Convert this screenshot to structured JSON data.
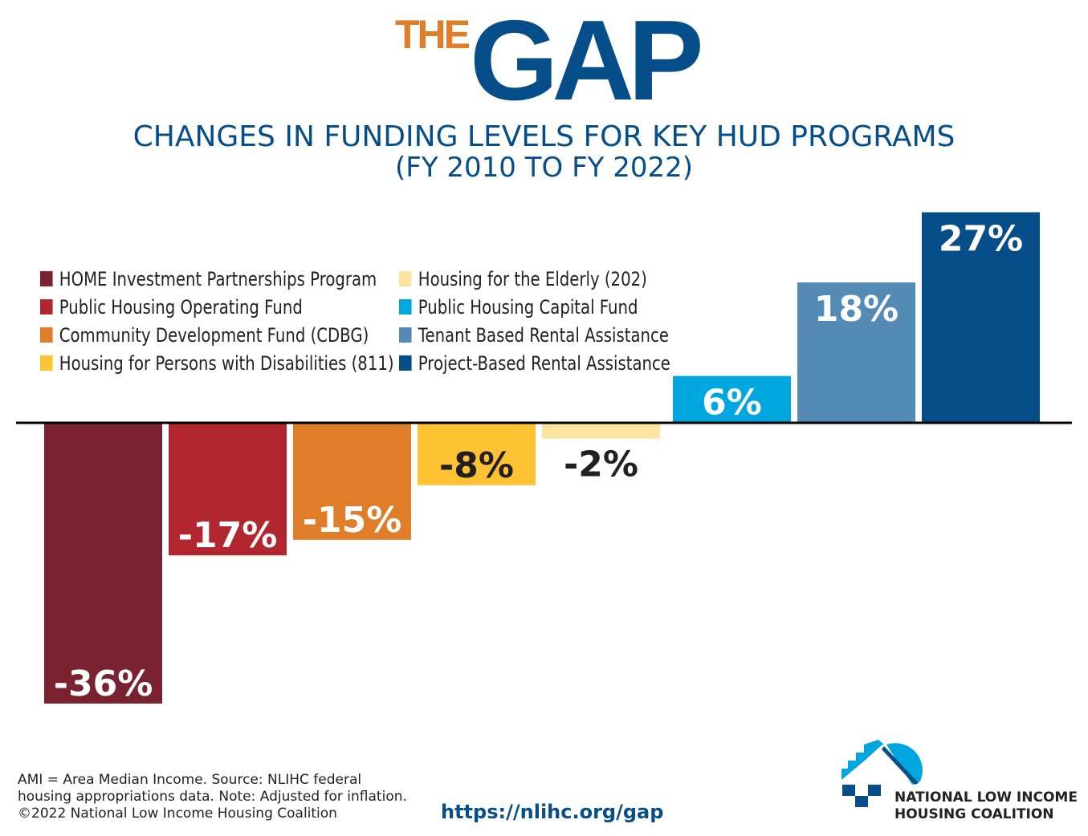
{
  "logo": {
    "the": "THE",
    "gap": "GAP"
  },
  "chart_data": {
    "type": "bar",
    "title": "CHANGES IN FUNDING LEVELS FOR KEY HUD PROGRAMS",
    "subtitle": "(FY 2010 TO FY 2022)",
    "categories": [
      "HOME Investment Partnerships Program",
      "Public Housing Operating Fund",
      "Community Development Fund (CDBG)",
      "Housing for Persons with Disabilities (811)",
      "Housing for the Elderly (202)",
      "Public Housing Capital Fund",
      "Tenant Based Rental Assistance",
      "Project-Based Rental Assistance"
    ],
    "values": [
      -36,
      -17,
      -15,
      -8,
      -2,
      6,
      18,
      27
    ],
    "labels": [
      "-36%",
      "-17%",
      "-15%",
      "-8%",
      "-2%",
      "6%",
      "18%",
      "27%"
    ],
    "colors": [
      "#7a222f",
      "#b1262f",
      "#e07d28",
      "#fec232",
      "#fde49d",
      "#00a6e0",
      "#538bb4",
      "#064e8a"
    ],
    "label_colors": [
      "#ffffff",
      "#ffffff",
      "#ffffff",
      "#231f20",
      "#231f20",
      "#ffffff",
      "#ffffff",
      "#ffffff"
    ],
    "unit": "%",
    "grid": false,
    "legend_placement": "top-left"
  },
  "footer": {
    "lines": [
      "AMI = Area Median Income. Source: NLIHC federal",
      "housing appropriations data. Note: Adjusted for inflation.",
      "©2022 National Low Income Housing Coalition"
    ],
    "url": "https://nlihc.org/gap",
    "org_lines": [
      "NATIONAL LOW INCOME",
      "HOUSING COALITION"
    ]
  }
}
